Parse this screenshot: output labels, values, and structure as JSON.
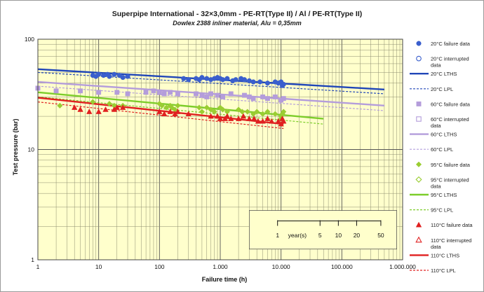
{
  "chart_data": {
    "type": "scatter",
    "title": "Superpipe International - 32×3,0mm - PE-RT(Type II) / Al / PE-RT(Type II)",
    "subtitle": "Dowlex 2388 inliner material, Alu = 0,35mm",
    "xlabel": "Failure time (h)",
    "ylabel": "Test pressure (bar)",
    "xscale": "log",
    "yscale": "log",
    "xlim": [
      1,
      1000000
    ],
    "ylim": [
      1,
      100
    ],
    "grid": true,
    "background_color": "#ffffcc",
    "x_ticks": [
      {
        "value": 1,
        "label": "1"
      },
      {
        "value": 10,
        "label": "10"
      },
      {
        "value": 100,
        "label": "100"
      },
      {
        "value": 1000,
        "label": "1.000"
      },
      {
        "value": 10000,
        "label": "10.000"
      },
      {
        "value": 100000,
        "label": "100.000"
      },
      {
        "value": 1000000,
        "label": "1.000.000"
      }
    ],
    "y_ticks": [
      {
        "value": 1,
        "label": "1"
      },
      {
        "value": 10,
        "label": "10"
      },
      {
        "value": 100,
        "label": "100"
      }
    ],
    "years_scale": {
      "label_prefix": "1",
      "label_word": "year(s)",
      "years": [
        1,
        5,
        10,
        20,
        50
      ],
      "labels": [
        "1",
        "5",
        "10",
        "20",
        "50"
      ]
    },
    "legend_position": "right",
    "series": [
      {
        "name": "20°C failure data",
        "kind": "points",
        "marker": "circle",
        "filled": true,
        "color": "#3a5fcd",
        "points": [
          [
            8,
            47
          ],
          [
            9,
            46
          ],
          [
            10,
            48
          ],
          [
            12,
            47
          ],
          [
            14,
            48
          ],
          [
            15,
            46
          ],
          [
            18,
            48
          ],
          [
            22,
            47
          ],
          [
            25,
            45
          ],
          [
            30,
            46
          ],
          [
            250,
            44
          ],
          [
            300,
            43
          ],
          [
            400,
            44
          ],
          [
            450,
            43
          ],
          [
            500,
            45
          ],
          [
            600,
            44
          ],
          [
            700,
            43
          ],
          [
            800,
            44
          ],
          [
            900,
            45
          ],
          [
            1000,
            44
          ],
          [
            1100,
            43
          ],
          [
            1300,
            44
          ],
          [
            1600,
            42
          ],
          [
            1800,
            43
          ],
          [
            2200,
            44
          ],
          [
            2500,
            43
          ],
          [
            3000,
            42
          ],
          [
            3500,
            41
          ],
          [
            4500,
            41
          ],
          [
            6000,
            40
          ],
          [
            8000,
            41
          ],
          [
            9000,
            40
          ],
          [
            10000,
            41
          ],
          [
            11000,
            39
          ],
          [
            10500,
            38
          ]
        ]
      },
      {
        "name": "20°C interrupted data",
        "kind": "points",
        "marker": "circle",
        "filled": false,
        "color": "#3a5fcd",
        "points": []
      },
      {
        "name": "20°C LTHS",
        "kind": "line",
        "style": "solid",
        "color": "#2046b8",
        "points": [
          [
            1,
            53.5
          ],
          [
            500000,
            35
          ]
        ]
      },
      {
        "name": "20°C LPL",
        "kind": "line",
        "style": "dashed",
        "color": "#2046b8",
        "points": [
          [
            1,
            50
          ],
          [
            500000,
            32
          ]
        ]
      },
      {
        "name": "60°C failure data",
        "kind": "points",
        "marker": "square",
        "filled": true,
        "color": "#b49ddb",
        "points": [
          [
            1,
            36
          ],
          [
            2,
            34
          ],
          [
            5,
            34
          ],
          [
            10,
            33
          ],
          [
            20,
            33
          ],
          [
            30,
            32
          ],
          [
            60,
            33
          ],
          [
            80,
            34
          ],
          [
            100,
            33
          ],
          [
            120,
            32
          ],
          [
            150,
            33
          ],
          [
            200,
            32
          ],
          [
            400,
            32
          ],
          [
            500,
            31
          ],
          [
            600,
            30
          ],
          [
            700,
            32
          ],
          [
            900,
            31
          ],
          [
            1100,
            30
          ],
          [
            1500,
            32
          ],
          [
            2500,
            31
          ],
          [
            3000,
            30
          ],
          [
            3500,
            29
          ],
          [
            5000,
            30
          ],
          [
            6000,
            29
          ],
          [
            8000,
            30
          ],
          [
            10000,
            28
          ],
          [
            11000,
            29
          ]
        ]
      },
      {
        "name": "60°C interrupted data",
        "kind": "points",
        "marker": "square",
        "filled": false,
        "color": "#b49ddb",
        "points": []
      },
      {
        "name": "60°C LTHS",
        "kind": "line",
        "style": "solid",
        "color": "#b49ddb",
        "points": [
          [
            1,
            41
          ],
          [
            500000,
            25
          ]
        ]
      },
      {
        "name": "60°C LPL",
        "kind": "line",
        "style": "dashed",
        "color": "#b49ddb",
        "points": [
          [
            1,
            37.5
          ],
          [
            500000,
            22.5
          ]
        ]
      },
      {
        "name": "95°C failure data",
        "kind": "points",
        "marker": "diamond",
        "filled": true,
        "color": "#9acd32",
        "points": [
          [
            2.3,
            25
          ],
          [
            8,
            27
          ],
          [
            15,
            26
          ],
          [
            18,
            25
          ],
          [
            25,
            25
          ],
          [
            100,
            26
          ],
          [
            110,
            25
          ],
          [
            130,
            24
          ],
          [
            150,
            25
          ],
          [
            160,
            24
          ],
          [
            180,
            23
          ],
          [
            200,
            25
          ],
          [
            450,
            24
          ],
          [
            500,
            22
          ],
          [
            600,
            24
          ],
          [
            700,
            23
          ],
          [
            800,
            22
          ],
          [
            1000,
            24
          ],
          [
            1100,
            23
          ],
          [
            1300,
            22
          ],
          [
            2000,
            23
          ],
          [
            2300,
            22
          ],
          [
            2800,
            22
          ],
          [
            3500,
            21
          ],
          [
            4000,
            22
          ],
          [
            5000,
            21
          ],
          [
            6000,
            22
          ],
          [
            8000,
            21
          ],
          [
            10000,
            20
          ],
          [
            10500,
            21
          ],
          [
            11000,
            22
          ],
          [
            10000,
            19
          ]
        ]
      },
      {
        "name": "95°C interrupted data",
        "kind": "points",
        "marker": "diamond",
        "filled": false,
        "color": "#9acd32",
        "points": []
      },
      {
        "name": "95°C LTHS",
        "kind": "line",
        "style": "solid",
        "color": "#7ccd2a",
        "points": [
          [
            1,
            33
          ],
          [
            50000,
            19
          ]
        ]
      },
      {
        "name": "95°C LPL",
        "kind": "line",
        "style": "dashed",
        "color": "#7ccd2a",
        "points": [
          [
            1,
            30
          ],
          [
            50000,
            17
          ]
        ]
      },
      {
        "name": "110°C failure data",
        "kind": "points",
        "marker": "triangle",
        "filled": true,
        "color": "#e02020",
        "points": [
          [
            4,
            24
          ],
          [
            5,
            23
          ],
          [
            7,
            22
          ],
          [
            10,
            22
          ],
          [
            13,
            23
          ],
          [
            18,
            23
          ],
          [
            20,
            24
          ],
          [
            25,
            24
          ],
          [
            100,
            22
          ],
          [
            120,
            21
          ],
          [
            150,
            22
          ],
          [
            180,
            21
          ],
          [
            200,
            22
          ],
          [
            300,
            21
          ],
          [
            700,
            20
          ],
          [
            900,
            20
          ],
          [
            1000,
            19
          ],
          [
            1200,
            19
          ],
          [
            1300,
            20
          ],
          [
            1500,
            19
          ],
          [
            2000,
            19
          ],
          [
            2400,
            20
          ],
          [
            3000,
            19
          ],
          [
            3600,
            19
          ],
          [
            4200,
            18
          ],
          [
            5000,
            18
          ],
          [
            6000,
            19
          ],
          [
            7000,
            18
          ],
          [
            9000,
            18
          ],
          [
            10000,
            17
          ],
          [
            10500,
            19
          ],
          [
            11000,
            18
          ]
        ]
      },
      {
        "name": "110°C interrupted data",
        "kind": "points",
        "marker": "triangle",
        "filled": false,
        "color": "#e02020",
        "points": []
      },
      {
        "name": "110°C LTHS",
        "kind": "line",
        "style": "solid",
        "color": "#e02020",
        "points": [
          [
            1,
            29.5
          ],
          [
            11000,
            17
          ]
        ]
      },
      {
        "name": "110°C LPL",
        "kind": "line",
        "style": "dashed",
        "color": "#e02020",
        "points": [
          [
            1,
            27
          ],
          [
            11000,
            15.5
          ]
        ]
      }
    ]
  }
}
